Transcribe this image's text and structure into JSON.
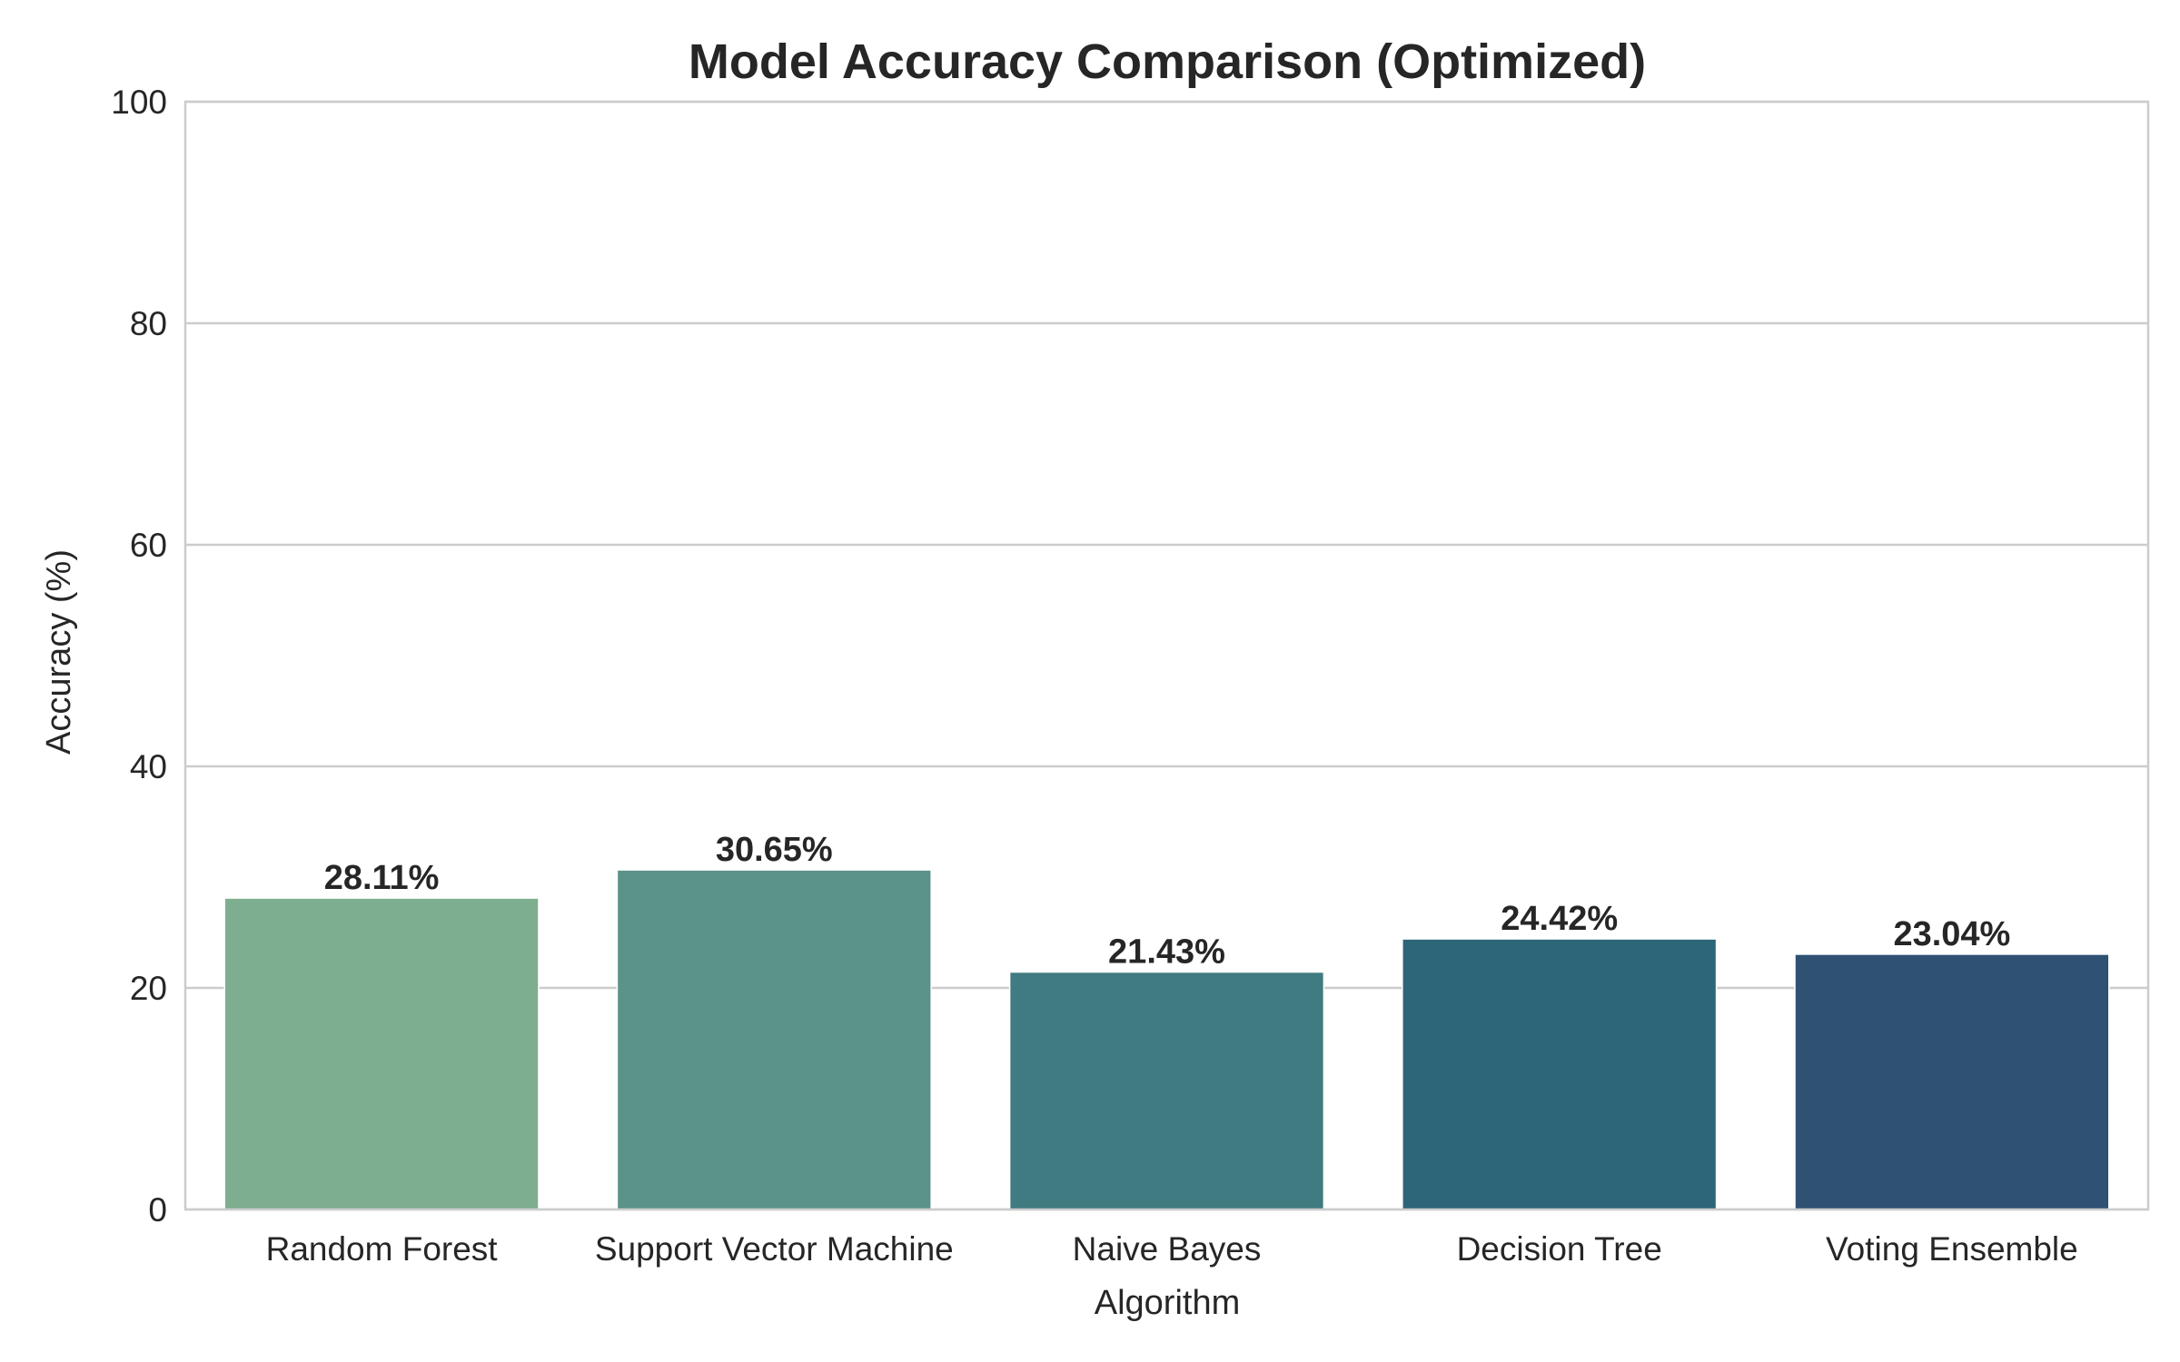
{
  "chart_data": {
    "type": "bar",
    "title": "Model Accuracy Comparison (Optimized)",
    "xlabel": "Algorithm",
    "ylabel": "Accuracy (%)",
    "categories": [
      "Random Forest",
      "Support Vector Machine",
      "Naive Bayes",
      "Decision Tree",
      "Voting Ensemble"
    ],
    "values": [
      28.11,
      30.65,
      21.43,
      24.42,
      23.04
    ],
    "value_labels": [
      "28.11%",
      "30.65%",
      "21.43%",
      "24.42%",
      "23.04%"
    ],
    "colors": [
      "#7dae8f",
      "#5b9389",
      "#3f7b80",
      "#2e6679",
      "#2f5174"
    ],
    "ylim": [
      0,
      100
    ],
    "yticks": [
      0,
      20,
      40,
      60,
      80,
      100
    ],
    "ytick_labels": [
      "0",
      "20",
      "40",
      "60",
      "80",
      "100"
    ],
    "grid": "horizontal",
    "legend": "none"
  }
}
